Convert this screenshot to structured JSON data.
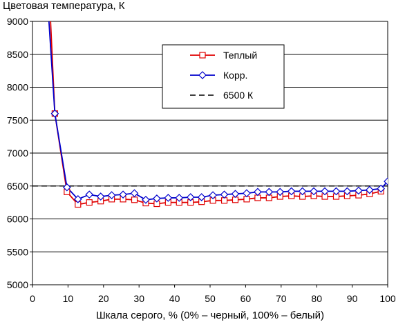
{
  "chart_data": {
    "type": "line",
    "title": "Цветовая температура, К",
    "xlabel": "Шкала серого, % (0% – черный, 100% – белый)",
    "ylabel": "",
    "xlim": [
      0,
      100
    ],
    "ylim": [
      5000,
      9000
    ],
    "x_ticks": [
      "0",
      "10",
      "20",
      "30",
      "40",
      "50",
      "60",
      "70",
      "80",
      "90",
      "100"
    ],
    "y_ticks": [
      "5000",
      "5500",
      "6000",
      "6500",
      "7000",
      "7500",
      "8000",
      "8500",
      "9000"
    ],
    "grid": true,
    "legend_position": "top-right",
    "series": [
      {
        "name": "Теплый",
        "color": "#e00000",
        "marker": "square",
        "x": [
          3.8,
          6.3,
          9.7,
          12.8,
          16,
          19.2,
          22.3,
          25.5,
          28.7,
          31.9,
          35,
          38.2,
          41.3,
          44.5,
          47.6,
          50.8,
          54,
          57.1,
          60.3,
          63.4,
          66.6,
          69.7,
          72.9,
          76,
          79.2,
          82.3,
          85.5,
          88.6,
          91.8,
          94.9,
          98.1
        ],
        "y": [
          10500,
          7600,
          6410,
          6220,
          6250,
          6270,
          6300,
          6300,
          6290,
          6240,
          6230,
          6250,
          6250,
          6250,
          6260,
          6280,
          6280,
          6290,
          6300,
          6320,
          6320,
          6340,
          6350,
          6340,
          6350,
          6340,
          6340,
          6350,
          6360,
          6380,
          6420
        ]
      },
      {
        "name": "Корр.",
        "color": "#0000cc",
        "marker": "diamond",
        "x": [
          3.8,
          6.3,
          9.7,
          12.8,
          16,
          19.2,
          22.3,
          25.5,
          28.7,
          31.9,
          35,
          38.2,
          41.3,
          44.5,
          47.6,
          50.8,
          54,
          57.1,
          60.3,
          63.4,
          66.6,
          69.7,
          72.9,
          76,
          79.2,
          82.3,
          85.5,
          88.6,
          91.8,
          94.9,
          98.1,
          100
        ],
        "y": [
          9700,
          7600,
          6480,
          6300,
          6370,
          6340,
          6360,
          6370,
          6390,
          6290,
          6310,
          6320,
          6320,
          6330,
          6330,
          6360,
          6370,
          6380,
          6390,
          6410,
          6410,
          6410,
          6420,
          6420,
          6420,
          6420,
          6420,
          6420,
          6430,
          6440,
          6460,
          6570
        ]
      },
      {
        "name": "6500 К",
        "color": "#000000",
        "style": "dashed",
        "x": [
          0,
          100
        ],
        "y": [
          6500,
          6500
        ]
      }
    ]
  }
}
